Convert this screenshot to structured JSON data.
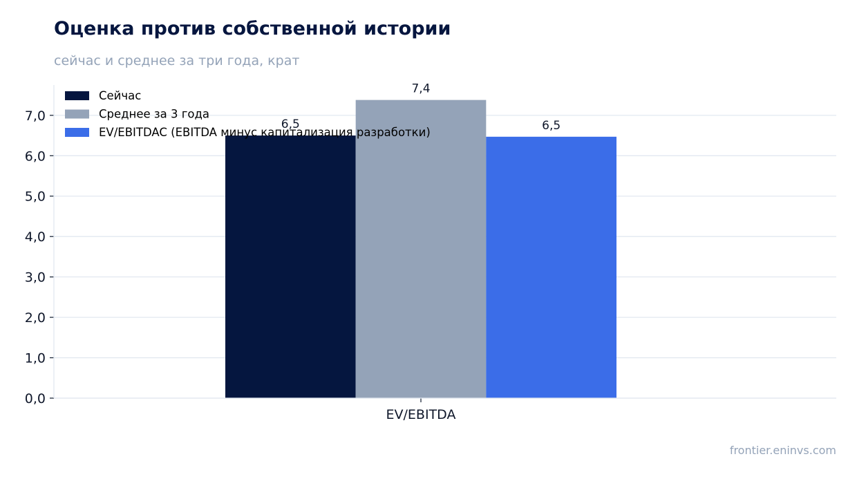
{
  "header": {
    "title": "Оценка против собственной истории",
    "subtitle": "сейчас и среднее за три года, крат"
  },
  "footer": {
    "source": "frontier.eninvs.com"
  },
  "chart_data": {
    "type": "bar",
    "title": "Оценка против собственной истории",
    "subtitle": "сейчас и среднее за три года, крат",
    "xlabel": "",
    "ylabel": "",
    "categories": [
      "EV/EBITDA"
    ],
    "series": [
      {
        "name": "Сейчас",
        "values": [
          6.5
        ],
        "labels": [
          "6,5"
        ],
        "color": "#05163f"
      },
      {
        "name": "Среднее за 3 года",
        "values": [
          7.38
        ],
        "labels": [
          "7,4"
        ],
        "color": "#94a3b8"
      },
      {
        "name": "EV/EBITDAC (EBITDA минус капитализация разработки)",
        "values": [
          6.47
        ],
        "labels": [
          "6,5"
        ],
        "color": "#3b6de8"
      }
    ],
    "ylim": [
      0,
      7.75
    ],
    "yticks": [
      0,
      1,
      2,
      3,
      4,
      5,
      6,
      7
    ],
    "ytick_labels": [
      "0,0",
      "1,0",
      "2,0",
      "3,0",
      "4,0",
      "5,0",
      "6,0",
      "7,0"
    ],
    "grid": true,
    "legend": "top-left",
    "colors": {
      "grid": "#e2e8f0",
      "axis": "#1e293b",
      "text": "#0f172a"
    }
  }
}
